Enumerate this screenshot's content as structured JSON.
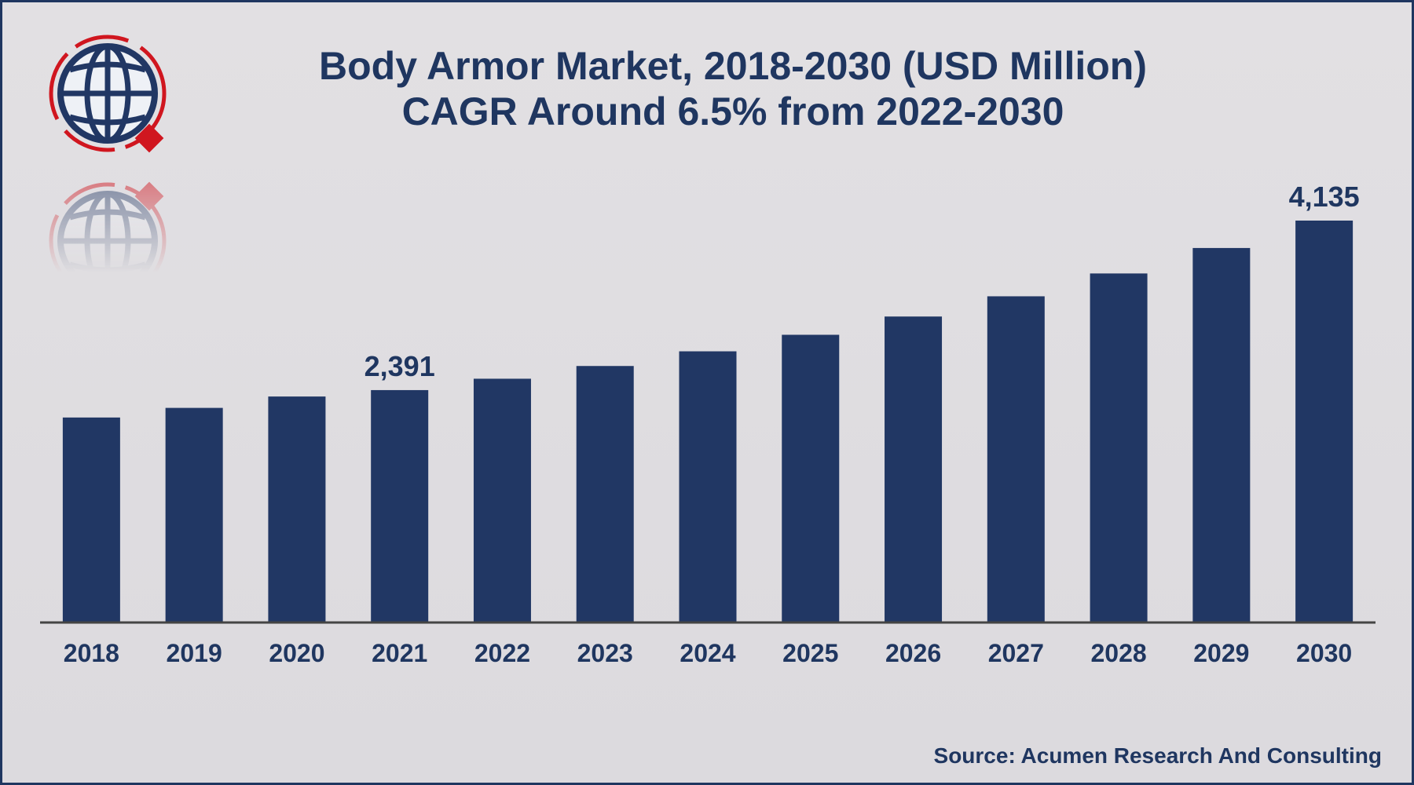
{
  "title_line1": "Body Armor Market, 2018-2030 (USD Million)",
  "title_line2": "CAGR Around 6.5% from 2022-2030",
  "source": "Source: Acumen Research And Consulting",
  "colors": {
    "bar": "#213764",
    "text": "#1f3660",
    "accent": "#d0161f",
    "background": "#dcdadd"
  },
  "logo_icon": "globe-logo-icon",
  "chart_data": {
    "type": "bar",
    "title": "Body Armor Market, 2018-2030 (USD Million)",
    "subtitle": "CAGR Around 6.5% from 2022-2030",
    "categories": [
      "2018",
      "2019",
      "2020",
      "2021",
      "2022",
      "2023",
      "2024",
      "2025",
      "2026",
      "2027",
      "2028",
      "2029",
      "2030"
    ],
    "values": [
      2109,
      2208,
      2325,
      2391,
      2508,
      2639,
      2790,
      2960,
      3148,
      3356,
      3591,
      3853,
      4135
    ],
    "data_labels": {
      "2021": "2,391",
      "2030": "4,135"
    },
    "xlabel": "",
    "ylabel": "",
    "ylim": [
      0,
      4500
    ],
    "grid": false,
    "legend": "none"
  }
}
